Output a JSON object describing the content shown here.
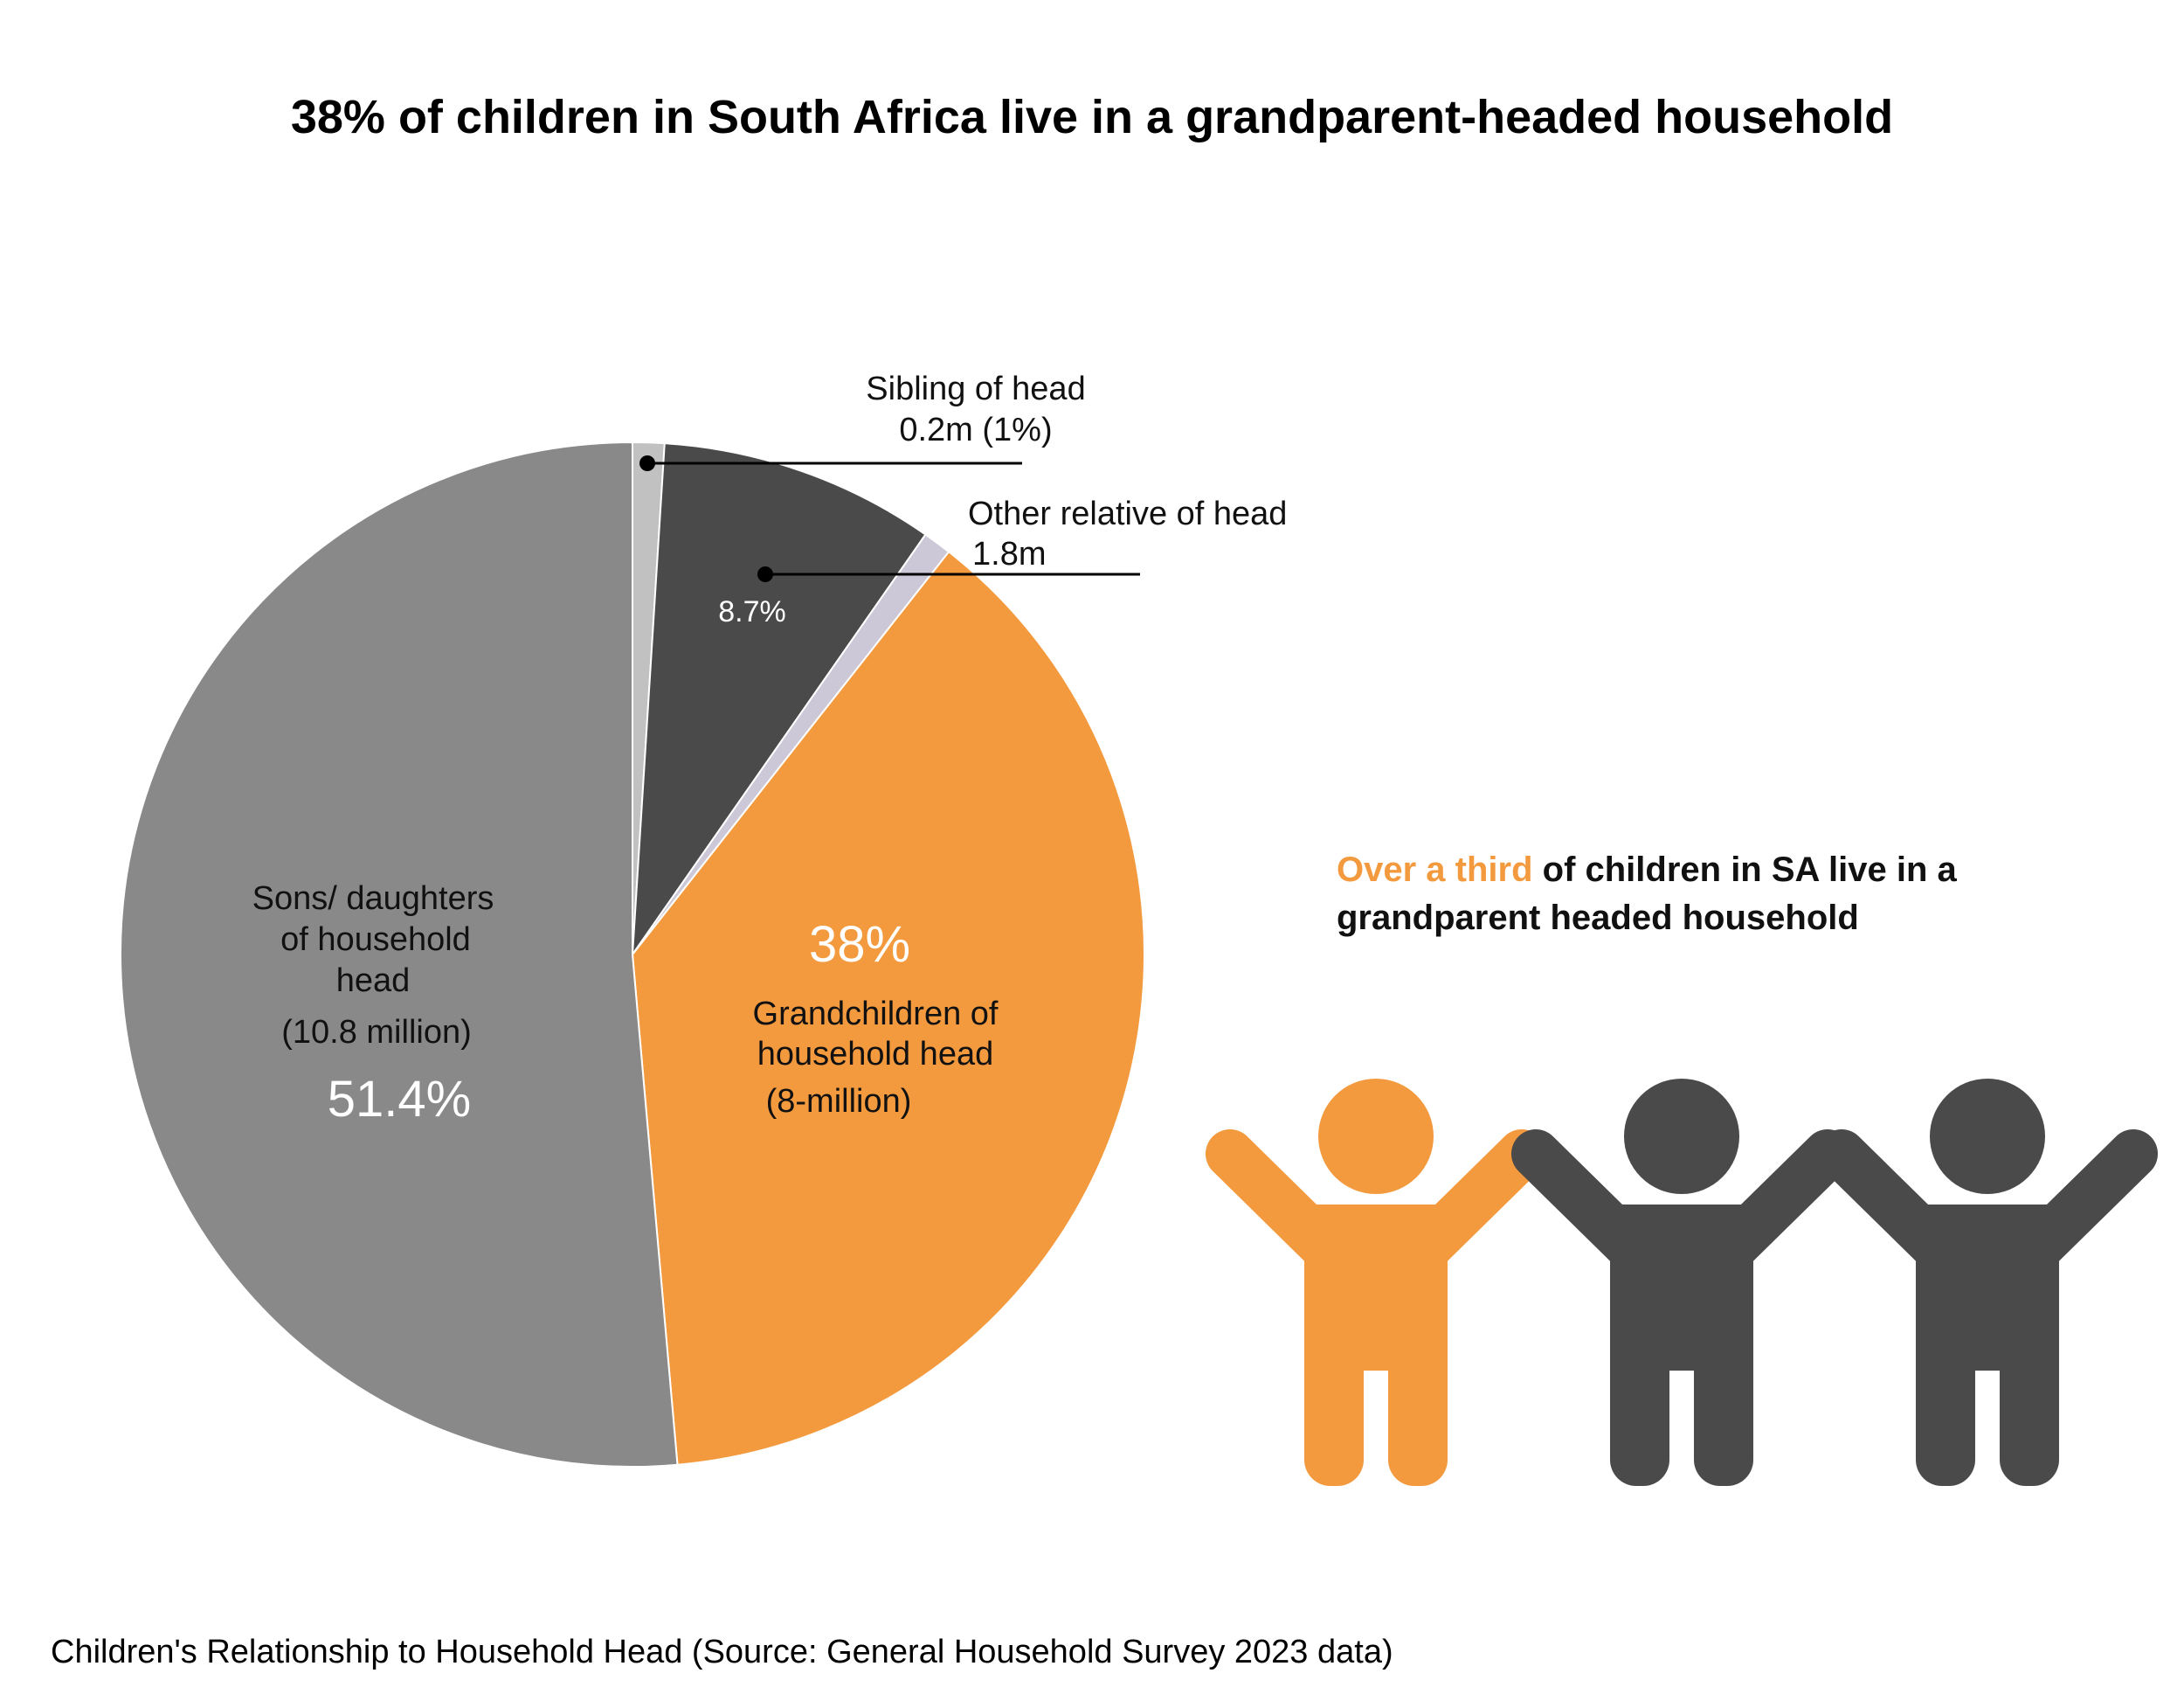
{
  "title": "38% of children in South Africa live in a grandparent-headed household",
  "chart_data": {
    "type": "pie",
    "title": "38% of children in South Africa live in a grandparent-headed household",
    "start": "top, clockwise",
    "slices": [
      {
        "key": "sibling",
        "value": 1,
        "color": "#c1c1c1",
        "label_lines": [
          "Sibling of head",
          "0.2m (1%)"
        ]
      },
      {
        "key": "other",
        "value": 8.7,
        "color": "#4a4a4a",
        "label_lines": [
          "Other relative of head",
          "1.8m"
        ],
        "pct_label": "8.7%"
      },
      {
        "key": "gap",
        "value": 0.9,
        "color": "#cdc8d8"
      },
      {
        "key": "grand",
        "value": 38,
        "color": "#f49a3e",
        "pct_label": "38%",
        "label_lines": [
          "Grandchildren of",
          "household head",
          "(8-million)"
        ]
      },
      {
        "key": "sons",
        "value": 51.4,
        "color": "#8a8989",
        "pct_label": "51.4%",
        "label_lines": [
          "Sons/ daughters",
          "of household",
          "head",
          "(10.8 million)"
        ]
      }
    ],
    "caption": "Children's Relationship to Household Head (Source: General Household Survey 2023 data)"
  },
  "callout": {
    "highlight": "Over a third",
    "rest_line1": " of children in SA live in a",
    "line2": "grandparent headed household",
    "highlight_color": "#f49a3e"
  },
  "icons": [
    {
      "name": "child-orange-icon",
      "color": "#f49a3e"
    },
    {
      "name": "child-dark-icon",
      "color": "#4a4a4a"
    },
    {
      "name": "child-dark-icon",
      "color": "#4a4a4a"
    }
  ]
}
